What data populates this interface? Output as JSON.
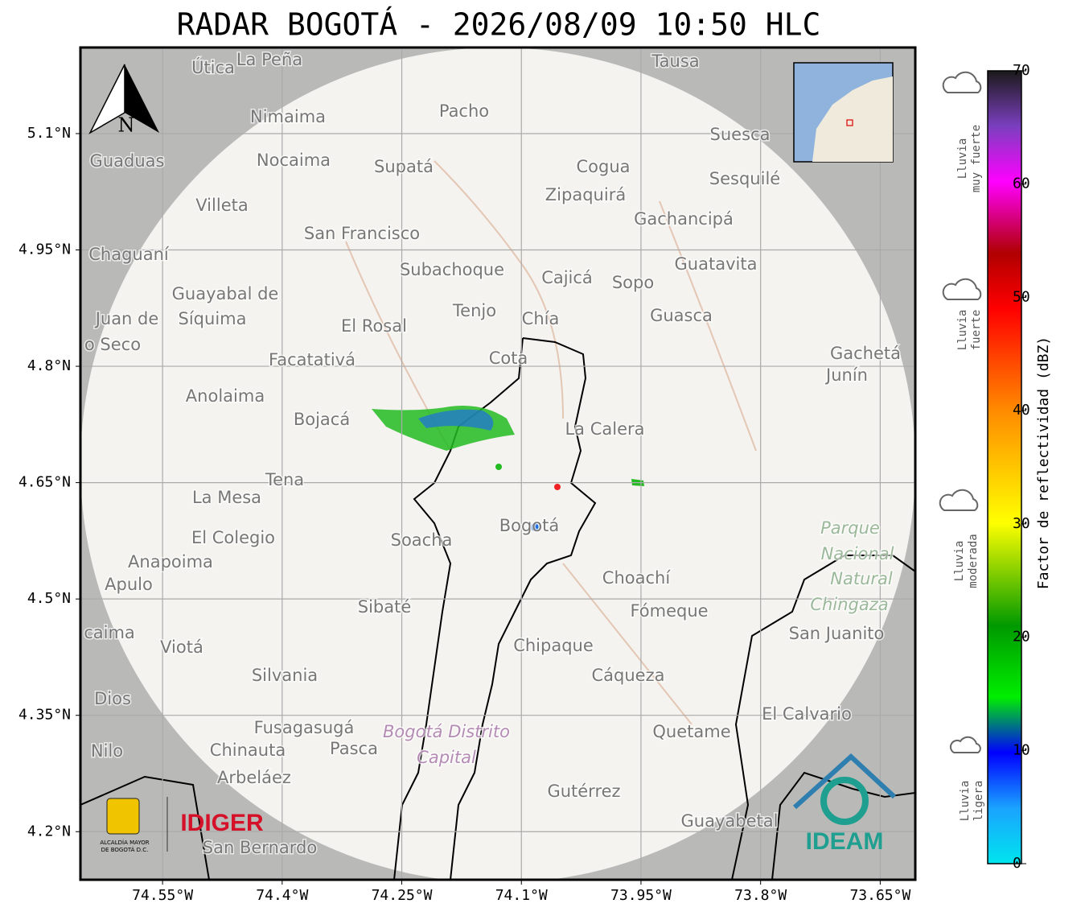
{
  "title": "RADAR BOGOTÁ - 2026/08/09 10:50 HLC",
  "map": {
    "xlim": [
      -74.653,
      -73.606
    ],
    "ylim": [
      4.138,
      5.211
    ],
    "xticks": [
      {
        "value": -74.55,
        "label": "74.55°W"
      },
      {
        "value": -74.4,
        "label": "74.4°W"
      },
      {
        "value": -74.25,
        "label": "74.25°W"
      },
      {
        "value": -74.1,
        "label": "74.1°W"
      },
      {
        "value": -73.95,
        "label": "73.95°W"
      },
      {
        "value": -73.8,
        "label": "73.8°W"
      },
      {
        "value": -73.65,
        "label": "73.65°W"
      }
    ],
    "yticks": [
      {
        "value": 4.2,
        "label": "4.2°N"
      },
      {
        "value": 4.35,
        "label": "4.35°N"
      },
      {
        "value": 4.5,
        "label": "4.5°N"
      },
      {
        "value": 4.65,
        "label": "4.65°N"
      },
      {
        "value": 4.8,
        "label": "4.8°N"
      },
      {
        "value": 4.95,
        "label": "4.95°N"
      },
      {
        "value": 5.1,
        "label": "5.1°N"
      }
    ],
    "grid": true,
    "north": "N",
    "places": [
      "Útica",
      "La Peña",
      "Tausa",
      "Pacho",
      "Nimaima",
      "Suesca",
      "Guaduas",
      "Nocaima",
      "Supatá",
      "Cogua",
      "Sesquilé",
      "Zipaquirá",
      "Villeta",
      "Gachancipá",
      "San Francisco",
      "Chaguaní",
      "Guatavita",
      "Subachoque",
      "Cajicá",
      "Sopo",
      "Guayabal de",
      "Síquima",
      "Tenjo",
      "Chía",
      "Guasca",
      "Juan de",
      "El Rosal",
      "o Seco",
      "Facatativá",
      "Cota",
      "Gachetá",
      "Junín",
      "Anolaima",
      "Bojacá",
      "La Calera",
      "Tena",
      "La Mesa",
      "Bogotá",
      "El Colegio",
      "Soacha",
      "Anapoima",
      "Apulo",
      "Choachí",
      "Sibaté",
      "Fómeque",
      "San Juanito",
      "caima",
      "Viotá",
      "Chipaque",
      "Silvania",
      "Cáqueza",
      "Dios",
      "El Calvario",
      "Fusagasugá",
      "Quetame",
      "Nilo",
      "Chinauta",
      "Pasca",
      "Arbeláez",
      "Gutérrez",
      "Guayabetal",
      "San Bernardo"
    ],
    "park": [
      "Parque",
      "Nacional",
      "Natural",
      "Chingaza"
    ],
    "district": [
      "Bogotá Distrito",
      "Capital"
    ]
  },
  "logos": {
    "alcaldia": [
      "ALCALDÍA MAYOR",
      "DE BOGOTÁ D.C."
    ],
    "idiger": "IDIGER",
    "ideam": "IDEAM"
  },
  "colorbar": {
    "label": "Factor de reflectividad (dBZ)",
    "ylim": [
      0,
      70
    ],
    "yticks": [
      0,
      10,
      20,
      30,
      40,
      50,
      60,
      70
    ]
  },
  "rain_levels": [
    {
      "lines": [
        "Lluvia",
        "muy fuerte"
      ]
    },
    {
      "lines": [
        "Lluvia",
        "fuerte"
      ]
    },
    {
      "lines": [
        "Lluvia",
        "moderada"
      ]
    },
    {
      "lines": [
        "Lluvia",
        "ligera"
      ]
    }
  ]
}
